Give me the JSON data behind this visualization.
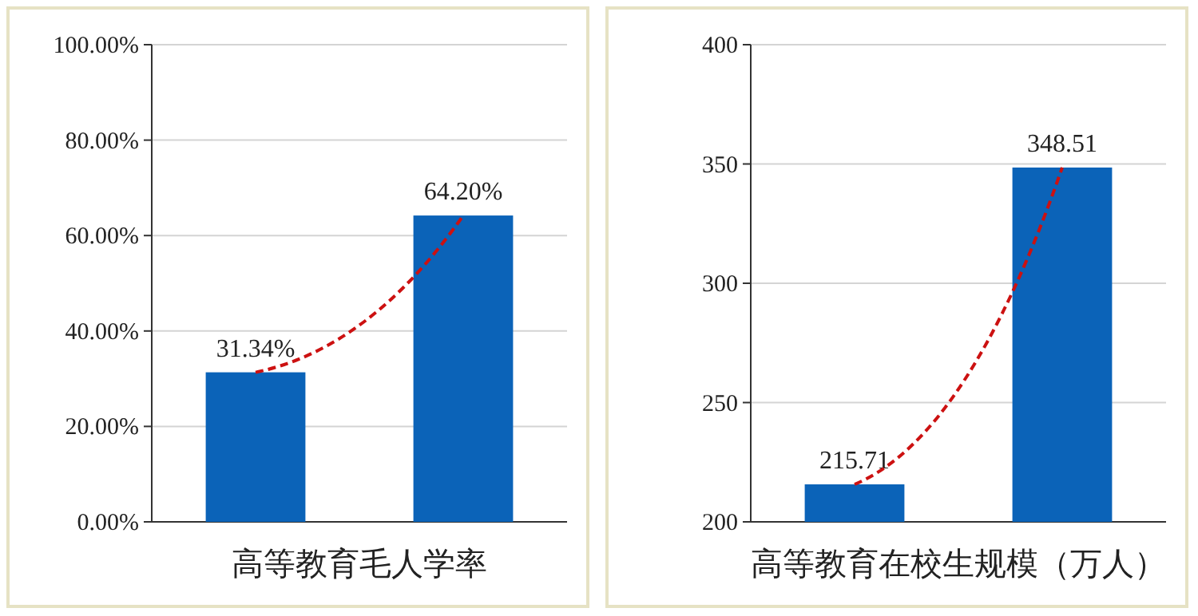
{
  "chart_data": [
    {
      "type": "bar",
      "xlabel": "高等教育毛人学率",
      "categories": [
        null,
        null
      ],
      "series": [
        {
          "color": "#0b63b8",
          "values": [
            31.34,
            64.2
          ],
          "value_labels": [
            "31.34%",
            "64.20%"
          ]
        },
        {
          "type": "line",
          "color": "#cc1111",
          "line_style": "dashed",
          "values": [
            31.34,
            64.2
          ]
        }
      ],
      "ylim": [
        0,
        100
      ],
      "yticks": [
        {
          "value": 0,
          "label": "0.00%"
        },
        {
          "value": 20,
          "label": "20.00%"
        },
        {
          "value": 40,
          "label": "40.00%"
        },
        {
          "value": 60,
          "label": "60.00%"
        },
        {
          "value": 80,
          "label": "80.00%"
        },
        {
          "value": 100,
          "label": "100.00%"
        }
      ],
      "grid": "y"
    },
    {
      "type": "bar",
      "xlabel": "高等教育在校生规模（万人）",
      "categories": [
        null,
        null
      ],
      "series": [
        {
          "color": "#0b63b8",
          "values": [
            215.71,
            348.51
          ],
          "value_labels": [
            "215.71",
            "348.51"
          ]
        },
        {
          "type": "line",
          "color": "#cc1111",
          "line_style": "dashed",
          "values": [
            215.71,
            348.51
          ]
        }
      ],
      "ylim": [
        200,
        400
      ],
      "yticks": [
        200,
        250,
        300,
        350,
        400
      ],
      "grid": "y"
    }
  ]
}
